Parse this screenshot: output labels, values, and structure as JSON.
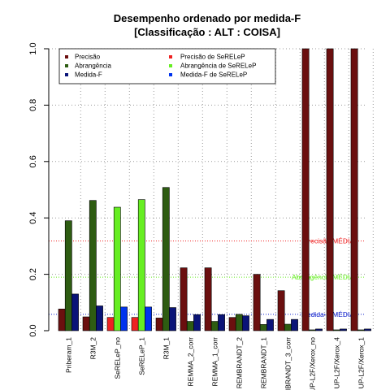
{
  "chart_data": {
    "type": "bar",
    "title": "Desempenho ordenado por medida-F",
    "subtitle": "[Classificação : ALT : COISA]",
    "xlabel": "",
    "ylabel": "",
    "ylim": [
      0,
      1
    ],
    "yticks": [
      "0.0",
      "0.2",
      "0.4",
      "0.6",
      "0.8",
      "1.0"
    ],
    "grid": true,
    "legend_position": "top",
    "categories": [
      "Priberam_1",
      "R3M_2",
      "SeRELeP_no",
      "SeRELeP_1",
      "R3M_1",
      "REMMA_2_corr",
      "REMMA_1_corr",
      "REMBRANDT_2",
      "REMBRANDT_1",
      "REMBRANDT_3_corr",
      "UP-L2F/Xerox_no",
      "UP-L2F/Xerox_4",
      "UP-L2F/Xerox_1"
    ],
    "highlight_categories": [
      "SeRELeP_no",
      "SeRELeP_1"
    ],
    "series": [
      {
        "name": "Precisão",
        "highlight_name": "Precisão  de  SeRELeP",
        "color": "#6b0f0f",
        "highlight_color": "#ee2222",
        "values": [
          0.077,
          0.049,
          0.047,
          0.047,
          0.045,
          0.223,
          0.223,
          0.047,
          0.2,
          0.142,
          1.0,
          1.0,
          1.0
        ]
      },
      {
        "name": "Abrangência",
        "highlight_name": "Abrangência  de  SeRELeP",
        "color": "#2e5c12",
        "highlight_color": "#66ee22",
        "values": [
          0.39,
          0.462,
          0.438,
          0.465,
          0.508,
          0.033,
          0.033,
          0.058,
          0.022,
          0.023,
          0.003,
          0.003,
          0.003
        ]
      },
      {
        "name": "Medida-F",
        "highlight_name": "Medida-F  de  SeRELeP",
        "color": "#0a1478",
        "highlight_color": "#0033ee",
        "values": [
          0.13,
          0.088,
          0.084,
          0.084,
          0.082,
          0.057,
          0.057,
          0.053,
          0.04,
          0.04,
          0.006,
          0.006,
          0.006
        ]
      }
    ],
    "reference_lines": [
      {
        "label": "Precisão MÉDIA",
        "value": 0.318,
        "color": "#ee2222"
      },
      {
        "label": "Abrangência MÉDIA",
        "value": 0.19,
        "color": "#66ee22"
      },
      {
        "label": "Medida-F MÉDIA",
        "value": 0.058,
        "color": "#1122cc"
      }
    ]
  }
}
